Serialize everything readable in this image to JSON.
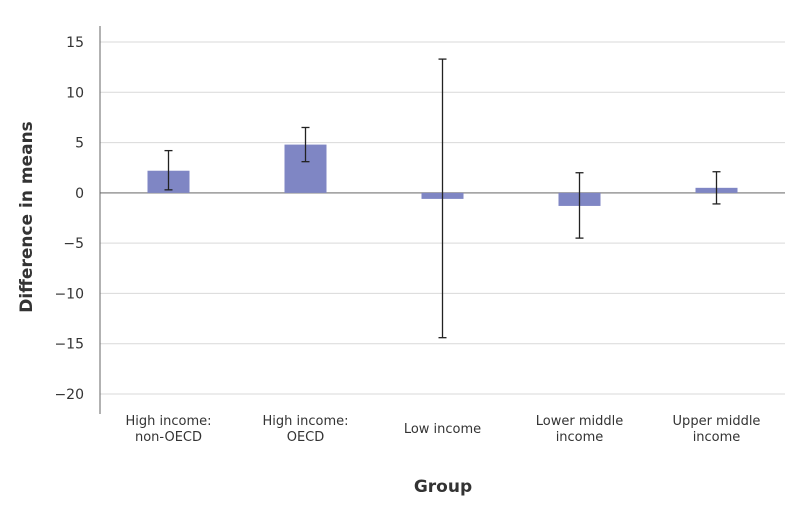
{
  "chart_data": {
    "type": "bar",
    "title": "",
    "xlabel": "Group",
    "ylabel": "Difference in means",
    "ylim": [
      -20,
      15
    ],
    "yticks": [
      15,
      10,
      5,
      0,
      -5,
      -10,
      -15,
      -20
    ],
    "ytick_labels": [
      "15",
      "10",
      "5",
      "0",
      "−5",
      "−10",
      "−15",
      "−20"
    ],
    "grid": true,
    "bar_color": "#7f86c4",
    "categories": [
      [
        "High income:",
        "non-OECD"
      ],
      [
        "High income:",
        "OECD"
      ],
      [
        "Low income"
      ],
      [
        "Lower middle",
        "income"
      ],
      [
        "Upper middle",
        "income"
      ]
    ],
    "values": [
      2.2,
      4.8,
      -0.6,
      -1.3,
      0.5
    ],
    "error_low": [
      0.3,
      3.1,
      -14.4,
      -4.5,
      -1.1
    ],
    "error_high": [
      4.2,
      6.5,
      13.3,
      2.0,
      2.1
    ]
  }
}
